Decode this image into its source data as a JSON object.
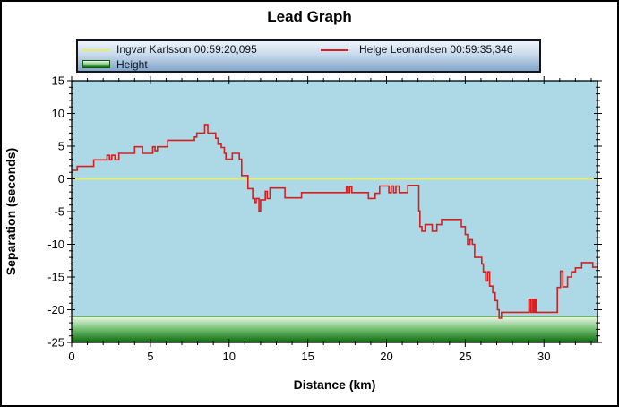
{
  "title": "Lead Graph",
  "legend": {
    "karlsson": "Ingvar Karlsson 00:59:20,095",
    "leonardsen": "Helge Leonardsen 00:59:35,346",
    "height": "Height"
  },
  "axes": {
    "x_label": "Distance (km)",
    "y_label": "Separation (seconds)"
  },
  "colors": {
    "background": "#ffffff",
    "frame_border": "#000000",
    "plot_background": "#add8e6",
    "plot_border": "#000000",
    "karlsson_line": "#e6ee5c",
    "leonardsen_line": "#d42020",
    "height_band_top": "#f0f8ec",
    "height_band_mid": "#7cc47c",
    "height_band_bottom": "#0c6d0c",
    "height_band_edge": "#0a5c0a",
    "legend_border": "#14141e",
    "text": "#000000"
  },
  "chart_data": {
    "type": "line",
    "title": "Lead Graph",
    "xlabel": "Distance (km)",
    "ylabel": "Separation (seconds)",
    "xlim": [
      0,
      33.4
    ],
    "ylim": [
      -25,
      15
    ],
    "x_major_ticks": [
      0,
      5,
      10,
      15,
      20,
      25,
      30
    ],
    "x_minor_step": 1,
    "y_major_ticks": [
      15,
      10,
      5,
      0,
      -5,
      -10,
      -15,
      -20,
      -25
    ],
    "y_minor_step": 1,
    "grid": false,
    "legend_position": "top",
    "series": [
      {
        "name": "Ingvar Karlsson 00:59:20,095",
        "type": "hline",
        "value": 0,
        "color": "#e6ee5c"
      },
      {
        "name": "Helge Leonardsen 00:59:35,346",
        "type": "step",
        "color": "#d42020",
        "points": [
          [
            0.0,
            1.3
          ],
          [
            0.35,
            1.9
          ],
          [
            1.4,
            2.9
          ],
          [
            2.25,
            3.6
          ],
          [
            2.4,
            2.9
          ],
          [
            2.55,
            3.6
          ],
          [
            2.75,
            2.9
          ],
          [
            3.0,
            3.9
          ],
          [
            4.0,
            4.9
          ],
          [
            4.5,
            3.9
          ],
          [
            5.15,
            4.9
          ],
          [
            5.3,
            4.3
          ],
          [
            5.45,
            4.9
          ],
          [
            6.1,
            5.9
          ],
          [
            7.8,
            6.4
          ],
          [
            7.95,
            7.0
          ],
          [
            8.45,
            8.3
          ],
          [
            8.65,
            7.0
          ],
          [
            9.15,
            6.2
          ],
          [
            9.3,
            5.3
          ],
          [
            9.5,
            4.8
          ],
          [
            9.7,
            3.9
          ],
          [
            9.8,
            3.0
          ],
          [
            10.2,
            3.9
          ],
          [
            10.65,
            3.0
          ],
          [
            10.8,
            0.5
          ],
          [
            11.2,
            -1.5
          ],
          [
            11.5,
            -3.0
          ],
          [
            11.62,
            -3.6
          ],
          [
            11.72,
            -3.0
          ],
          [
            11.9,
            -4.9
          ],
          [
            12.0,
            -3.2
          ],
          [
            12.3,
            -1.9
          ],
          [
            12.42,
            -3.0
          ],
          [
            12.6,
            -1.4
          ],
          [
            13.55,
            -2.9
          ],
          [
            14.6,
            -2.1
          ],
          [
            17.45,
            -1.2
          ],
          [
            17.55,
            -2.1
          ],
          [
            17.65,
            -1.2
          ],
          [
            17.8,
            -2.1
          ],
          [
            18.85,
            -3.0
          ],
          [
            19.28,
            -2.2
          ],
          [
            19.56,
            -1.1
          ],
          [
            20.15,
            -2.1
          ],
          [
            20.3,
            -1.1
          ],
          [
            20.45,
            -2.1
          ],
          [
            20.6,
            -1.1
          ],
          [
            20.8,
            -2.1
          ],
          [
            21.35,
            -1.0
          ],
          [
            22.05,
            -4.9
          ],
          [
            22.12,
            -7.3
          ],
          [
            22.25,
            -8.0
          ],
          [
            22.45,
            -7.0
          ],
          [
            22.9,
            -8.0
          ],
          [
            23.2,
            -7.0
          ],
          [
            23.5,
            -6.2
          ],
          [
            24.75,
            -7.3
          ],
          [
            25.0,
            -8.5
          ],
          [
            25.15,
            -10.0
          ],
          [
            25.3,
            -9.3
          ],
          [
            25.45,
            -10.0
          ],
          [
            25.6,
            -12.0
          ],
          [
            26.05,
            -13.0
          ],
          [
            26.15,
            -14.2
          ],
          [
            26.3,
            -15.6
          ],
          [
            26.42,
            -14.2
          ],
          [
            26.55,
            -16.4
          ],
          [
            26.75,
            -17.4
          ],
          [
            26.9,
            -18.6
          ],
          [
            27.05,
            -20.0
          ],
          [
            27.15,
            -21.3
          ],
          [
            27.3,
            -20.4
          ],
          [
            29.05,
            -18.4
          ],
          [
            29.15,
            -20.4
          ],
          [
            29.25,
            -18.4
          ],
          [
            29.35,
            -20.4
          ],
          [
            29.42,
            -18.4
          ],
          [
            29.5,
            -20.4
          ],
          [
            30.85,
            -16.6
          ],
          [
            31.05,
            -14.1
          ],
          [
            31.2,
            -16.5
          ],
          [
            31.5,
            -15.0
          ],
          [
            31.75,
            -14.2
          ],
          [
            32.0,
            -13.6
          ],
          [
            32.4,
            -12.8
          ],
          [
            33.1,
            -13.5
          ],
          [
            33.4,
            -13.5
          ]
        ]
      },
      {
        "name": "Height",
        "type": "band",
        "y_from": -25,
        "y_to": -21
      }
    ]
  }
}
